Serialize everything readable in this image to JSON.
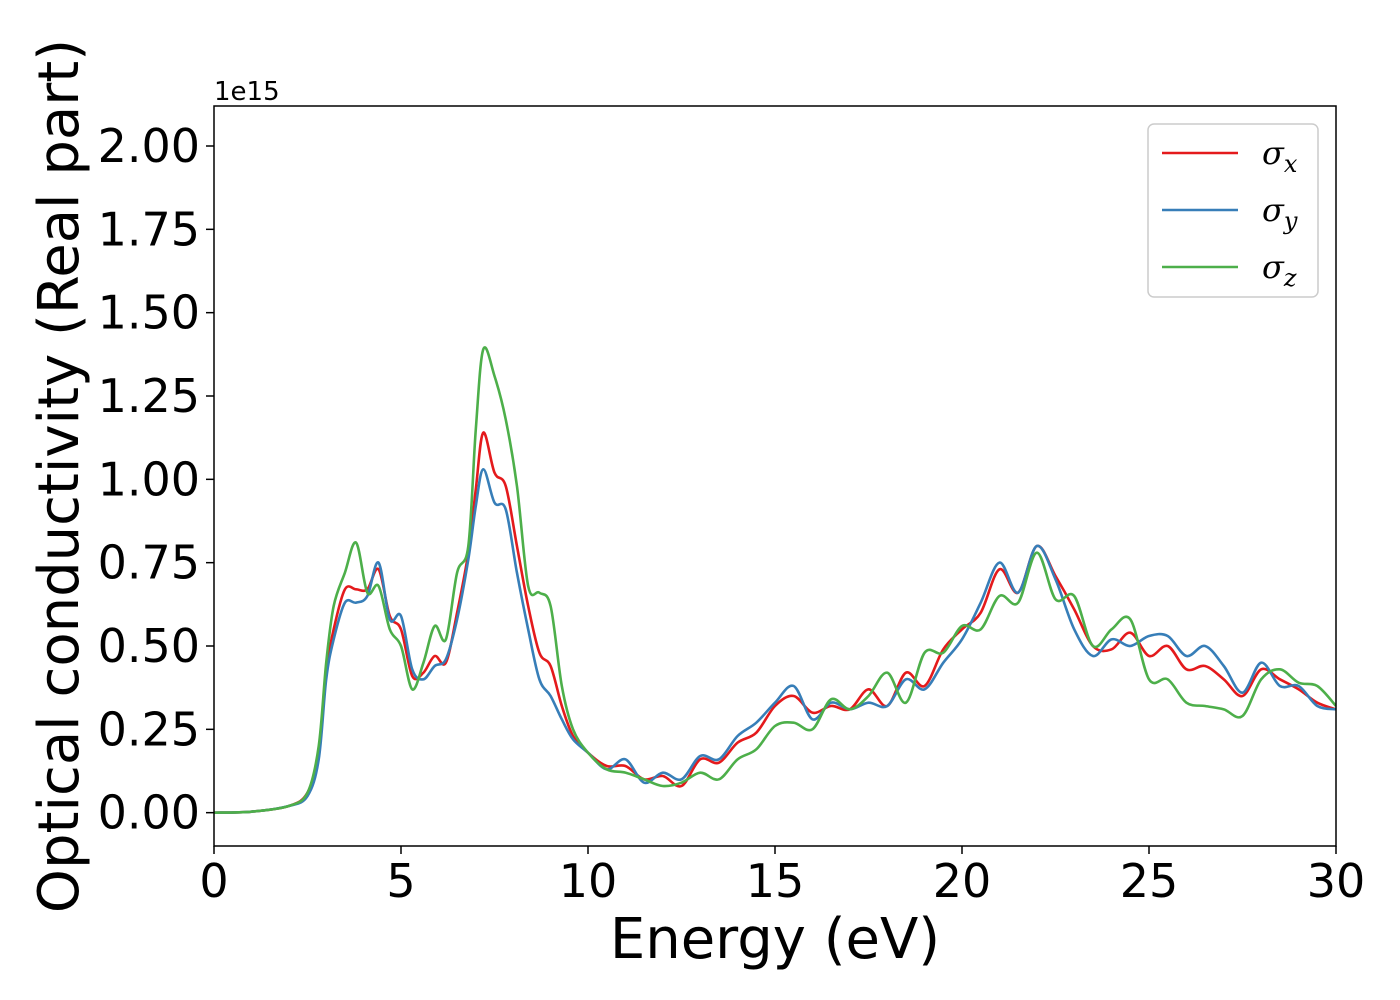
{
  "chart_data": {
    "type": "line",
    "title": "",
    "xlabel": "Energy (eV)",
    "ylabel": "Optical conductivity (Real part)",
    "y_offset_label": "1e15",
    "xlim": [
      0,
      30
    ],
    "ylim": [
      -0.1,
      2.12
    ],
    "x_ticks": [
      0,
      5,
      10,
      15,
      20,
      25,
      30
    ],
    "x_tick_labels": [
      "0",
      "5",
      "10",
      "15",
      "20",
      "25",
      "30"
    ],
    "y_ticks": [
      0,
      0.25,
      0.5,
      0.75,
      1.0,
      1.25,
      1.5,
      1.75,
      2.0
    ],
    "y_tick_labels": [
      "0.00",
      "0.25",
      "0.50",
      "0.75",
      "1.00",
      "1.25",
      "1.50",
      "1.75",
      "2.00"
    ],
    "grid": false,
    "legend_position": "top-right",
    "series": [
      {
        "name": "σx",
        "legend_base": "σ",
        "legend_sub": "x",
        "color": "#e41a1c",
        "x": [
          0,
          1,
          2,
          2.5,
          2.8,
          3.0,
          3.2,
          3.5,
          3.8,
          4.1,
          4.4,
          4.7,
          5.0,
          5.3,
          5.6,
          5.9,
          6.2,
          6.5,
          6.8,
          7.0,
          7.2,
          7.5,
          7.8,
          8.1,
          8.4,
          8.7,
          9.0,
          9.3,
          9.6,
          10.0,
          10.5,
          11.0,
          11.5,
          12.0,
          12.5,
          13.0,
          13.5,
          14.0,
          14.5,
          15.0,
          15.5,
          16.0,
          16.5,
          17.0,
          17.5,
          18.0,
          18.5,
          19.0,
          19.5,
          20.0,
          20.5,
          21.0,
          21.5,
          22.0,
          22.5,
          23.0,
          23.5,
          24.0,
          24.5,
          25.0,
          25.5,
          26.0,
          26.5,
          27.0,
          27.5,
          28.0,
          28.5,
          29.0,
          29.5,
          30.0
        ],
        "y": [
          0.0,
          0.003,
          0.02,
          0.06,
          0.18,
          0.42,
          0.55,
          0.67,
          0.67,
          0.67,
          0.73,
          0.59,
          0.55,
          0.41,
          0.42,
          0.47,
          0.45,
          0.6,
          0.78,
          0.97,
          1.14,
          1.02,
          0.98,
          0.8,
          0.62,
          0.48,
          0.44,
          0.32,
          0.23,
          0.18,
          0.14,
          0.14,
          0.1,
          0.11,
          0.08,
          0.16,
          0.15,
          0.21,
          0.24,
          0.32,
          0.35,
          0.3,
          0.32,
          0.31,
          0.37,
          0.32,
          0.42,
          0.38,
          0.49,
          0.55,
          0.6,
          0.73,
          0.66,
          0.8,
          0.71,
          0.61,
          0.5,
          0.49,
          0.54,
          0.47,
          0.5,
          0.43,
          0.44,
          0.4,
          0.35,
          0.43,
          0.4,
          0.37,
          0.33,
          0.31
        ]
      },
      {
        "name": "σy",
        "legend_base": "σ",
        "legend_sub": "y",
        "color": "#377eb8",
        "x": [
          0,
          1,
          2,
          2.5,
          2.8,
          3.0,
          3.2,
          3.5,
          3.8,
          4.1,
          4.4,
          4.7,
          5.0,
          5.3,
          5.6,
          5.9,
          6.2,
          6.5,
          6.8,
          7.0,
          7.2,
          7.5,
          7.8,
          8.1,
          8.4,
          8.7,
          9.0,
          9.3,
          9.6,
          10.0,
          10.5,
          11.0,
          11.5,
          12.0,
          12.5,
          13.0,
          13.5,
          14.0,
          14.5,
          15.0,
          15.5,
          16.0,
          16.5,
          17.0,
          17.5,
          18.0,
          18.5,
          19.0,
          19.5,
          20.0,
          20.5,
          21.0,
          21.5,
          22.0,
          22.5,
          23.0,
          23.5,
          24.0,
          24.5,
          25.0,
          25.5,
          26.0,
          26.5,
          27.0,
          27.5,
          28.0,
          28.5,
          29.0,
          29.5,
          30.0
        ],
        "y": [
          0.0,
          0.003,
          0.02,
          0.05,
          0.16,
          0.4,
          0.52,
          0.63,
          0.63,
          0.65,
          0.75,
          0.58,
          0.59,
          0.43,
          0.4,
          0.44,
          0.46,
          0.58,
          0.76,
          0.92,
          1.03,
          0.93,
          0.91,
          0.72,
          0.55,
          0.4,
          0.35,
          0.28,
          0.22,
          0.18,
          0.13,
          0.16,
          0.09,
          0.12,
          0.1,
          0.17,
          0.16,
          0.23,
          0.27,
          0.33,
          0.38,
          0.28,
          0.33,
          0.31,
          0.33,
          0.32,
          0.4,
          0.37,
          0.45,
          0.52,
          0.63,
          0.75,
          0.66,
          0.8,
          0.7,
          0.55,
          0.47,
          0.52,
          0.5,
          0.53,
          0.53,
          0.47,
          0.5,
          0.44,
          0.36,
          0.45,
          0.38,
          0.38,
          0.32,
          0.31
        ]
      },
      {
        "name": "σz",
        "legend_base": "σ",
        "legend_sub": "z",
        "color": "#4daf4a",
        "x": [
          0,
          1,
          2,
          2.5,
          2.8,
          3.0,
          3.2,
          3.5,
          3.8,
          4.1,
          4.4,
          4.7,
          5.0,
          5.3,
          5.6,
          5.9,
          6.2,
          6.5,
          6.8,
          7.0,
          7.2,
          7.5,
          7.8,
          8.1,
          8.4,
          8.7,
          9.0,
          9.3,
          9.6,
          10.0,
          10.5,
          11.0,
          11.5,
          12.0,
          12.5,
          13.0,
          13.5,
          14.0,
          14.5,
          15.0,
          15.5,
          16.0,
          16.5,
          17.0,
          17.5,
          18.0,
          18.5,
          19.0,
          19.5,
          20.0,
          20.5,
          21.0,
          21.5,
          22.0,
          22.5,
          23.0,
          23.5,
          24.0,
          24.5,
          25.0,
          25.5,
          26.0,
          26.5,
          27.0,
          27.5,
          28.0,
          28.5,
          29.0,
          29.5,
          30.0
        ],
        "y": [
          0.0,
          0.003,
          0.02,
          0.06,
          0.2,
          0.45,
          0.62,
          0.72,
          0.81,
          0.66,
          0.68,
          0.55,
          0.5,
          0.37,
          0.45,
          0.56,
          0.52,
          0.72,
          0.8,
          1.15,
          1.39,
          1.31,
          1.18,
          0.98,
          0.68,
          0.66,
          0.62,
          0.38,
          0.25,
          0.18,
          0.13,
          0.12,
          0.1,
          0.08,
          0.09,
          0.12,
          0.1,
          0.16,
          0.19,
          0.26,
          0.27,
          0.25,
          0.34,
          0.31,
          0.35,
          0.42,
          0.33,
          0.48,
          0.48,
          0.56,
          0.55,
          0.65,
          0.63,
          0.78,
          0.64,
          0.65,
          0.5,
          0.55,
          0.58,
          0.4,
          0.4,
          0.33,
          0.32,
          0.31,
          0.29,
          0.4,
          0.43,
          0.39,
          0.38,
          0.32
        ]
      }
    ]
  }
}
